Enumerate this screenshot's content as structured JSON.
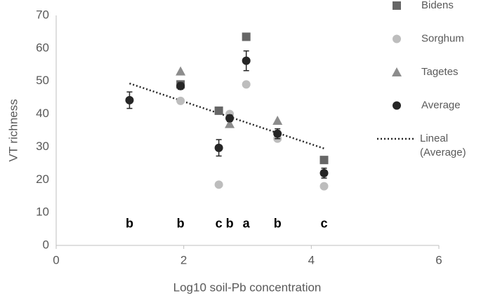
{
  "chart_data": {
    "type": "scatter",
    "x_label": "Log10 soil-Pb concentration",
    "y_label": "VT richness",
    "xlim": [
      0,
      6
    ],
    "xticks": [
      0,
      2,
      4,
      6
    ],
    "ylim": [
      0,
      70
    ],
    "yticks": [
      0,
      10,
      20,
      30,
      40,
      50,
      60,
      70
    ],
    "grid": false,
    "legend": "right",
    "series": [
      {
        "name": "Bidens",
        "color": "#666666",
        "marker": "square",
        "x": [
          1.95,
          2.55,
          2.98,
          4.2
        ],
        "values": [
          49,
          41,
          63.5,
          26
        ]
      },
      {
        "name": "Sorghum",
        "color": "#bdbdbd",
        "marker": "circle",
        "x": [
          1.95,
          2.55,
          2.72,
          2.98,
          3.47,
          4.2
        ],
        "values": [
          44,
          18.5,
          40,
          49,
          32.5,
          18
        ]
      },
      {
        "name": "Tagetes",
        "color": "#8c8c8c",
        "marker": "triangle",
        "x": [
          1.95,
          2.72,
          3.47
        ],
        "values": [
          53,
          37,
          38
        ]
      },
      {
        "name": "Average",
        "color": "#262626",
        "marker": "circle",
        "x": [
          1.15,
          1.95,
          2.55,
          2.72,
          2.98,
          3.47,
          4.2
        ],
        "values": [
          44.2,
          48.5,
          29.7,
          38.7,
          56.2,
          34,
          22
        ],
        "errors": [
          2.5,
          1,
          2.5,
          1,
          3,
          1.5,
          1.5
        ]
      }
    ],
    "trendline": {
      "name": "Lineal (Average)",
      "color": "#262626",
      "x": [
        1.15,
        4.2
      ],
      "values": [
        49.3,
        29.5
      ]
    },
    "annotations": [
      {
        "text": "b",
        "x": 1.15,
        "y": 6.5
      },
      {
        "text": "b",
        "x": 1.95,
        "y": 6.5
      },
      {
        "text": "c",
        "x": 2.55,
        "y": 6.5
      },
      {
        "text": "b",
        "x": 2.72,
        "y": 6.5
      },
      {
        "text": "a",
        "x": 2.98,
        "y": 6.5
      },
      {
        "text": "b",
        "x": 3.47,
        "y": 6.5
      },
      {
        "text": "c",
        "x": 4.2,
        "y": 6.5
      }
    ]
  }
}
